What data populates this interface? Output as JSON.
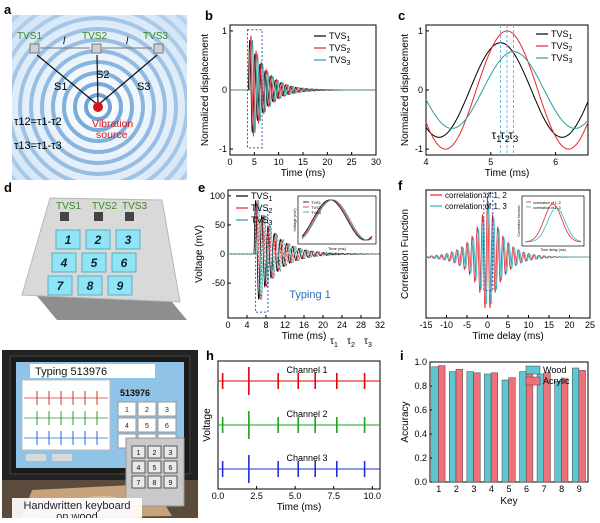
{
  "panel_labels": {
    "a": "a",
    "b": "b",
    "c": "c",
    "d": "d",
    "e": "e",
    "f": "f",
    "g": "g",
    "h": "h",
    "i": "i"
  },
  "panel_a": {
    "sensors": [
      "TVS1",
      "TVS2",
      "TVS3"
    ],
    "distance_labels": [
      "l",
      "l"
    ],
    "path_labels": [
      "S1",
      "S2",
      "S3"
    ],
    "eq1": "τ12=τ1-τ2",
    "eq2": "τ13=τ1-τ3",
    "source": "Vibration source"
  },
  "panel_d": {
    "sensors": [
      "TVS1",
      "TVS2",
      "TVS3"
    ],
    "keys": [
      "1",
      "2",
      "3",
      "4",
      "5",
      "6",
      "7",
      "8",
      "9"
    ]
  },
  "panel_g": {
    "screen_title": "Typing 513976",
    "screen_text": "513976",
    "caption": "Handwritten keyboard on wood",
    "keys": [
      "1",
      "2",
      "3",
      "4",
      "5",
      "6",
      "7",
      "8",
      "9"
    ]
  },
  "colors": {
    "tvs1": "#000000",
    "tvs2": "#e8262b",
    "tvs3": "#2a9d9a",
    "ch1": "#e8000b",
    "ch2": "#1aa31a",
    "ch3": "#1f2fd6",
    "wood": "#5fc6cf",
    "acrylic": "#f0707a",
    "corr12": "#e8262b",
    "corr13": "#2fb6c7"
  },
  "chart_data": [
    {
      "panel": "b",
      "type": "line",
      "xlabel": "Time (ms)",
      "ylabel": "Normalized displacement",
      "xlim": [
        0,
        30
      ],
      "ylim": [
        -1.1,
        1.1
      ],
      "xticks": [
        0,
        5,
        10,
        15,
        20,
        25,
        30
      ],
      "yticks": [
        -1,
        0,
        1
      ],
      "series": [
        {
          "name": "TVS1",
          "legend": [
            "TVS",
            "1"
          ]
        },
        {
          "name": "TVS2",
          "legend": [
            "TVS",
            "2"
          ]
        },
        {
          "name": "TVS3",
          "legend": [
            "TVS",
            "3"
          ]
        }
      ]
    },
    {
      "panel": "c",
      "type": "line",
      "xlabel": "Time (ms)",
      "ylabel": "Normalized displacement",
      "xlim": [
        4,
        6.5
      ],
      "ylim": [
        -1.1,
        1.1
      ],
      "xticks": [
        4,
        5,
        6
      ],
      "yticks": [
        -1,
        0,
        1
      ],
      "annotations": [
        [
          "τ",
          "1"
        ],
        [
          "τ",
          "2"
        ],
        [
          "τ",
          "3"
        ]
      ],
      "marker_times": [
        5.15,
        5.25,
        5.35
      ],
      "series": [
        {
          "name": "TVS1",
          "legend": [
            "TVS",
            "1"
          ]
        },
        {
          "name": "TVS2",
          "legend": [
            "TVS",
            "2"
          ]
        },
        {
          "name": "TVS3",
          "legend": [
            "TVS",
            "3"
          ]
        }
      ]
    },
    {
      "panel": "e",
      "type": "line",
      "xlabel": "Time (ms)",
      "ylabel": "Voltage (mV)",
      "xlim": [
        0,
        32
      ],
      "ylim": [
        -110,
        110
      ],
      "xticks": [
        0,
        4,
        8,
        12,
        16,
        20,
        24,
        28,
        32
      ],
      "yticks": [
        -50,
        0,
        50,
        100
      ],
      "note": "Typing 1",
      "extra_labels": [
        [
          "τ",
          "1"
        ],
        [
          "τ",
          "2"
        ],
        [
          "τ",
          "3"
        ]
      ],
      "inset": {
        "ylabel": "Voltage (mV)",
        "xlabel": "Time (ms)",
        "legend": [
          "TVS1",
          "TVS2",
          "TVS3"
        ]
      },
      "series": [
        {
          "name": "TVS1",
          "legend": [
            "TVS",
            "1"
          ]
        },
        {
          "name": "TVS2",
          "legend": [
            "TVS",
            "2"
          ]
        },
        {
          "name": "TVS3",
          "legend": [
            "TVS",
            "3"
          ]
        }
      ]
    },
    {
      "panel": "f",
      "type": "line",
      "xlabel": "Time delay (ms)",
      "ylabel": "Correlation Function",
      "xlim": [
        -15,
        25
      ],
      "ylim": [
        -1.0,
        1.1
      ],
      "xticks": [
        -15,
        -10,
        -5,
        0,
        5,
        10,
        15,
        20,
        25
      ],
      "inset": {
        "xlabel": "Time delay (ms)",
        "ylabel": "Correlation function",
        "legend": [
          "correlation of 1, 2",
          "correlation of 1, 3"
        ]
      },
      "series": [
        {
          "name": "correlation of 1, 2"
        },
        {
          "name": "correlation of 1, 3"
        }
      ]
    },
    {
      "panel": "h",
      "type": "line",
      "xlabel": "Time (ms)",
      "ylabel": "Voltage",
      "xlim": [
        0,
        10.5
      ],
      "xticks": [
        0,
        2.5,
        5.0,
        7.5,
        10.0
      ],
      "xticklabels": [
        "0.0",
        "2.5",
        "5.0",
        "7.5",
        "10.0"
      ],
      "spike_times": [
        0.3,
        2.0,
        3.9,
        5.2,
        6.3,
        7.7,
        9.5
      ],
      "series": [
        {
          "name": "Channel 1"
        },
        {
          "name": "Channel 2"
        },
        {
          "name": "Channel 3"
        }
      ]
    },
    {
      "panel": "i",
      "type": "bar",
      "xlabel": "Key",
      "ylabel": "Accuracy",
      "categories": [
        "1",
        "2",
        "3",
        "4",
        "5",
        "6",
        "7",
        "8",
        "9"
      ],
      "ylim": [
        0,
        1.0
      ],
      "yticks": [
        0.0,
        0.2,
        0.4,
        0.6,
        0.8,
        1.0
      ],
      "yticklabels": [
        "0.0",
        "0.2",
        "0.4",
        "0.6",
        "0.8",
        "1.0"
      ],
      "series": [
        {
          "name": "Wood",
          "values": [
            0.96,
            0.92,
            0.92,
            0.9,
            0.85,
            0.92,
            0.9,
            0.84,
            0.95
          ]
        },
        {
          "name": "Acrylic",
          "values": [
            0.97,
            0.94,
            0.91,
            0.91,
            0.87,
            0.94,
            0.91,
            0.86,
            0.93
          ]
        }
      ]
    }
  ]
}
